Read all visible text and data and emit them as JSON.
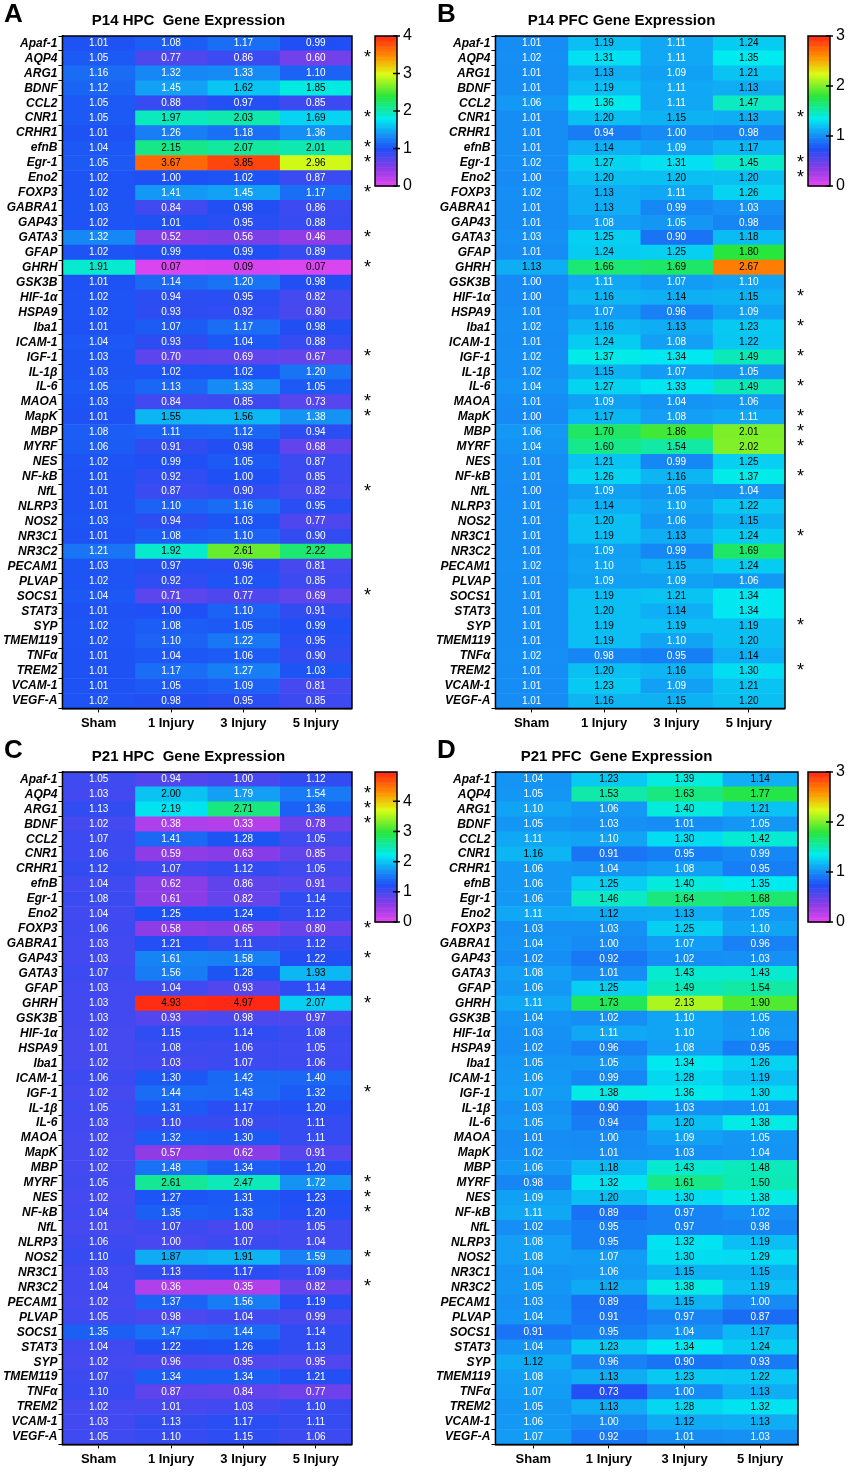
{
  "chart_data": [
    {
      "type": "heatmap",
      "title": "P14 HPC  Gene Expression",
      "annotations": [
        "A"
      ],
      "cell_labels": [
        [
          "1.01",
          "1.08",
          "1.17",
          "0.99"
        ],
        [
          "1.05",
          "0.77",
          "0.86",
          "0.60"
        ],
        [
          "1.16",
          "1.32",
          "1.33",
          "1.10"
        ],
        [
          "1.12",
          "1.45",
          "1.62",
          "1.85"
        ],
        [
          "1.05",
          "0.88",
          "0.97",
          "0.85"
        ],
        [
          "1.05",
          "1.97",
          "2.03",
          "1.69"
        ],
        [
          "1.01",
          "1.26",
          "1.18",
          "1.36"
        ],
        [
          "1.04",
          "2.15",
          "2.07",
          "2.01"
        ],
        [
          "1.05",
          "3.67",
          "3.85",
          "2.96"
        ],
        [
          "1.02",
          "1.00",
          "1.02",
          "0.87"
        ],
        [
          "1.02",
          "1.41",
          "1.45",
          "1.17"
        ],
        [
          "1.03",
          "0.84",
          "0.98",
          "0.86"
        ],
        [
          "1.02",
          "1.01",
          "0.95",
          "0.88"
        ],
        [
          "1.32",
          "0.52",
          "0.56",
          "0.46"
        ],
        [
          "1.02",
          "0.99",
          "0.99",
          "0.89"
        ],
        [
          "1.91",
          "0.07",
          "0.09",
          "0.07"
        ],
        [
          "1.01",
          "1.14",
          "1.20",
          "0.98"
        ],
        [
          "1.02",
          "0.94",
          "0.95",
          "0.82"
        ],
        [
          "1.02",
          "0.93",
          "0.92",
          "0.80"
        ],
        [
          "1.01",
          "1.07",
          "1.17",
          "0.98"
        ],
        [
          "1.04",
          "0.93",
          "1.04",
          "0.88"
        ],
        [
          "1.03",
          "0.70",
          "0.69",
          "0.67"
        ],
        [
          "1.03",
          "1.02",
          "1.02",
          "1.20"
        ],
        [
          "1.05",
          "1.13",
          "1.33",
          "1.05"
        ],
        [
          "1.03",
          "0.84",
          "0.85",
          "0.73"
        ],
        [
          "1.01",
          "1.55",
          "1.56",
          "1.38"
        ],
        [
          "1.08",
          "1.11",
          "1.12",
          "0.94"
        ],
        [
          "1.06",
          "0.91",
          "0.98",
          "0.68"
        ],
        [
          "1.02",
          "0.99",
          "1.05",
          "0.87"
        ],
        [
          "1.01",
          "0.92",
          "1.00",
          "0.85"
        ],
        [
          "1.01",
          "0.87",
          "0.90",
          "0.82"
        ],
        [
          "1.01",
          "1.10",
          "1.16",
          "0.95"
        ],
        [
          "1.03",
          "0.94",
          "1.03",
          "0.77"
        ],
        [
          "1.01",
          "1.08",
          "1.10",
          "0.90"
        ],
        [
          "1.21",
          "1.92",
          "2.61",
          "2.22"
        ],
        [
          "1.03",
          "0.97",
          "0.96",
          "0.81"
        ],
        [
          "1.02",
          "0.92",
          "1.02",
          "0.85"
        ],
        [
          "1.04",
          "0.71",
          "0.77",
          "0.69"
        ],
        [
          "1.01",
          "1.00",
          "1.10",
          "0.91"
        ],
        [
          "1.02",
          "1.08",
          "1.05",
          "0.99"
        ],
        [
          "1.02",
          "1.10",
          "1.22",
          "0.95"
        ],
        [
          "1.01",
          "1.04",
          "1.06",
          "0.90"
        ],
        [
          "1.01",
          "1.17",
          "1.27",
          "1.03"
        ],
        [
          "1.01",
          "1.05",
          "1.09",
          "0.81"
        ],
        [
          "1.02",
          "0.98",
          "0.95",
          "0.85"
        ]
      ],
      "data_labels": true,
      "clim": [
        0,
        4
      ],
      "cticks": [
        0,
        1,
        2,
        3,
        4
      ],
      "categories": [
        "Sham",
        "1 Injury",
        "3 Injury",
        "5 Injury"
      ],
      "y_categories": [
        "Apaf-1",
        "AQP4",
        "ARG1",
        "BDNF",
        "CCL2",
        "CNR1",
        "CRHR1",
        "efnB",
        "Egr-1",
        "Eno2",
        "FOXP3",
        "GABRA1",
        "GAP43",
        "GATA3",
        "GFAP",
        "GHRH",
        "GSK3B",
        "HIF-1α",
        "HSPA9",
        "Iba1",
        "ICAM-1",
        "IGF-1",
        "IL-1β",
        "IL-6",
        "MAOA",
        "MapK",
        "MBP",
        "MYRF",
        "NES",
        "NF-kB",
        "NfL",
        "NLRP3",
        "NOS2",
        "NR3C1",
        "NR3C2",
        "PECAM1",
        "PLVAP",
        "SOCS1",
        "STAT3",
        "SYP",
        "TMEM119",
        "TNFα",
        "TREM2",
        "VCAM-1",
        "VEGF-A"
      ],
      "y2_categories": [
        null,
        "*",
        null,
        null,
        null,
        "*",
        null,
        "*",
        "*",
        null,
        "*",
        null,
        null,
        "*",
        null,
        "*",
        null,
        null,
        null,
        null,
        null,
        "*",
        null,
        null,
        "*",
        "*",
        null,
        null,
        null,
        null,
        "*",
        null,
        null,
        null,
        null,
        null,
        null,
        "*",
        null,
        null,
        null,
        null,
        null,
        null,
        null
      ],
      "cells": [
        [
          1.01,
          1.08,
          1.17,
          0.99
        ],
        [
          1.05,
          0.77,
          0.86,
          0.6
        ],
        [
          1.16,
          1.32,
          1.33,
          1.1
        ],
        [
          1.12,
          1.45,
          1.62,
          1.85
        ],
        [
          1.05,
          0.88,
          0.97,
          0.85
        ],
        [
          1.05,
          1.97,
          2.03,
          1.69
        ],
        [
          1.01,
          1.26,
          1.18,
          1.36
        ],
        [
          1.04,
          2.15,
          2.07,
          2.01
        ],
        [
          1.05,
          3.67,
          3.85,
          2.96
        ],
        [
          1.02,
          1.0,
          1.02,
          0.87
        ],
        [
          1.02,
          1.41,
          1.45,
          1.17
        ],
        [
          1.03,
          0.84,
          0.98,
          0.86
        ],
        [
          1.02,
          1.01,
          0.95,
          0.88
        ],
        [
          1.32,
          0.52,
          0.56,
          0.46
        ],
        [
          1.02,
          0.99,
          0.99,
          0.89
        ],
        [
          1.91,
          0.07,
          0.09,
          0.07
        ],
        [
          1.01,
          1.14,
          1.2,
          0.98
        ],
        [
          1.02,
          0.94,
          0.95,
          0.82
        ],
        [
          1.02,
          0.93,
          0.92,
          0.8
        ],
        [
          1.01,
          1.07,
          1.17,
          0.98
        ],
        [
          1.04,
          0.93,
          1.04,
          0.88
        ],
        [
          1.03,
          0.7,
          0.69,
          0.67
        ],
        [
          1.03,
          1.02,
          1.02,
          1.2
        ],
        [
          1.05,
          1.13,
          1.33,
          1.05
        ],
        [
          1.03,
          0.84,
          0.85,
          0.73
        ],
        [
          1.01,
          1.55,
          1.56,
          1.38
        ],
        [
          1.08,
          1.11,
          1.12,
          0.94
        ],
        [
          1.06,
          0.91,
          0.98,
          0.68
        ],
        [
          1.02,
          0.99,
          1.05,
          0.87
        ],
        [
          1.01,
          0.92,
          1.0,
          0.85
        ],
        [
          1.01,
          0.87,
          0.9,
          0.82
        ],
        [
          1.01,
          1.1,
          1.16,
          0.95
        ],
        [
          1.03,
          0.94,
          1.03,
          0.77
        ],
        [
          1.01,
          1.08,
          1.1,
          0.9
        ],
        [
          1.21,
          1.92,
          2.61,
          2.22
        ],
        [
          1.03,
          0.97,
          0.96,
          0.81
        ],
        [
          1.02,
          0.92,
          1.02,
          0.85
        ],
        [
          1.04,
          0.71,
          0.77,
          0.69
        ],
        [
          1.01,
          1.0,
          1.1,
          0.91
        ],
        [
          1.02,
          1.08,
          1.05,
          0.99
        ],
        [
          1.02,
          1.1,
          1.22,
          0.95
        ],
        [
          1.01,
          1.04,
          1.06,
          0.9
        ],
        [
          1.01,
          1.17,
          1.27,
          1.03
        ],
        [
          1.01,
          1.05,
          1.09,
          0.81
        ],
        [
          1.02,
          0.98,
          0.95,
          0.85
        ]
      ]
    },
    {
      "type": "heatmap",
      "title": "P14 PFC Gene Expression",
      "annotations": [
        "B"
      ],
      "cell_labels": [
        [
          "1.01",
          "1.19",
          "1.11",
          "1.24"
        ],
        [
          "1.02",
          "1.31",
          "1.11",
          "1.35"
        ],
        [
          "1.01",
          "1.13",
          "1.09",
          "1.21"
        ],
        [
          "1.01",
          "1.19",
          "1.11",
          "1.13"
        ],
        [
          "1.06",
          "1.36",
          "1.11",
          "1.47"
        ],
        [
          "1.01",
          "1.20",
          "1.15",
          "1.13"
        ],
        [
          "1.01",
          "0.94",
          "1.00",
          "0.98"
        ],
        [
          "1.01",
          "1.14",
          "1.09",
          "1.17"
        ],
        [
          "1.02",
          "1.27",
          "1.31",
          "1.45"
        ],
        [
          "1.00",
          "1.20",
          "1.20",
          "1.20"
        ],
        [
          "1.02",
          "1.13",
          "1.11",
          "1.26"
        ],
        [
          "1.01",
          "1.13",
          "0.99",
          "1.03"
        ],
        [
          "1.01",
          "1.08",
          "1.05",
          "0.98"
        ],
        [
          "1.03",
          "1.25",
          "0.90",
          "1.18"
        ],
        [
          "1.01",
          "1.24",
          "1.25",
          "1.80"
        ],
        [
          "1.13",
          "1.66",
          "1.69",
          "2.67"
        ],
        [
          "1.00",
          "1.11",
          "1.07",
          "1.10"
        ],
        [
          "1.00",
          "1.16",
          "1.14",
          "1.15"
        ],
        [
          "1.01",
          "1.07",
          "0.96",
          "1.09"
        ],
        [
          "1.02",
          "1.16",
          "1.13",
          "1.23"
        ],
        [
          "1.01",
          "1.24",
          "1.08",
          "1.22"
        ],
        [
          "1.02",
          "1.37",
          "1.34",
          "1.49"
        ],
        [
          "1.02",
          "1.15",
          "1.07",
          "1.05"
        ],
        [
          "1.04",
          "1.27",
          "1.33",
          "1.49"
        ],
        [
          "1.01",
          "1.09",
          "1.04",
          "1.06"
        ],
        [
          "1.00",
          "1.17",
          "1.08",
          "1.11"
        ],
        [
          "1.06",
          "1.70",
          "1.86",
          "2.01"
        ],
        [
          "1.04",
          "1.60",
          "1.54",
          "2.02"
        ],
        [
          "1.01",
          "1.21",
          "0.99",
          "1.25"
        ],
        [
          "1.01",
          "1.26",
          "1.16",
          "1.37"
        ],
        [
          "1.00",
          "1.09",
          "1.05",
          "1.04"
        ],
        [
          "1.01",
          "1.14",
          "1.10",
          "1.22"
        ],
        [
          "1.01",
          "1.20",
          "1.06",
          "1.15"
        ],
        [
          "1.01",
          "1.19",
          "1.13",
          "1.24"
        ],
        [
          "1.01",
          "1.09",
          "0.99",
          "1.69"
        ],
        [
          "1.02",
          "1.10",
          "1.15",
          "1.24"
        ],
        [
          "1.01",
          "1.09",
          "1.09",
          "1.06"
        ],
        [
          "1.01",
          "1.19",
          "1.21",
          "1.34"
        ],
        [
          "1.01",
          "1.20",
          "1.14",
          "1.34"
        ],
        [
          "1.01",
          "1.19",
          "1.19",
          "1.19"
        ],
        [
          "1.01",
          "1.19",
          "1.10",
          "1.20"
        ],
        [
          "1.02",
          "0.98",
          "0.95",
          "1.14"
        ],
        [
          "1.01",
          "1.20",
          "1.16",
          "1.30"
        ],
        [
          "1.01",
          "1.23",
          "1.09",
          "1.21"
        ],
        [
          "1.01",
          "1.16",
          "1.15",
          "1.20"
        ]
      ],
      "data_labels": true,
      "clim": [
        0,
        3
      ],
      "cticks": [
        0,
        1,
        2,
        3
      ],
      "categories": [
        "Sham",
        "1 Injury",
        "3 Injury",
        "5 Injury"
      ],
      "y_categories": [
        "Apaf-1",
        "AQP4",
        "ARG1",
        "BDNF",
        "CCL2",
        "CNR1",
        "CRHR1",
        "efnB",
        "Egr-1",
        "Eno2",
        "FOXP3",
        "GABRA1",
        "GAP43",
        "GATA3",
        "GFAP",
        "GHRH",
        "GSK3B",
        "HIF-1α",
        "HSPA9",
        "Iba1",
        "ICAM-1",
        "IGF-1",
        "IL-1β",
        "IL-6",
        "MAOA",
        "MapK",
        "MBP",
        "MYRF",
        "NES",
        "NF-kB",
        "NfL",
        "NLRP3",
        "NOS2",
        "NR3C1",
        "NR3C2",
        "PECAM1",
        "PLVAP",
        "SOCS1",
        "STAT3",
        "SYP",
        "TMEM119",
        "TNFα",
        "TREM2",
        "VCAM-1",
        "VEGF-A"
      ],
      "y2_categories": [
        null,
        null,
        null,
        null,
        null,
        "*",
        null,
        null,
        "*",
        "*",
        null,
        null,
        null,
        null,
        null,
        null,
        null,
        "*",
        null,
        "*",
        null,
        "*",
        null,
        "*",
        null,
        "*",
        "*",
        "*",
        null,
        "*",
        null,
        null,
        null,
        "*",
        null,
        null,
        null,
        null,
        null,
        "*",
        null,
        null,
        "*",
        null,
        null
      ],
      "cells": [
        [
          1.01,
          1.19,
          1.11,
          1.24
        ],
        [
          1.02,
          1.31,
          1.11,
          1.35
        ],
        [
          1.01,
          1.13,
          1.09,
          1.21
        ],
        [
          1.01,
          1.19,
          1.11,
          1.13
        ],
        [
          1.06,
          1.36,
          1.11,
          1.47
        ],
        [
          1.01,
          1.2,
          1.15,
          1.13
        ],
        [
          1.01,
          0.94,
          1.0,
          0.98
        ],
        [
          1.01,
          1.14,
          1.09,
          1.17
        ],
        [
          1.02,
          1.27,
          1.31,
          1.45
        ],
        [
          1.0,
          1.2,
          1.2,
          1.2
        ],
        [
          1.02,
          1.13,
          1.11,
          1.26
        ],
        [
          1.01,
          1.13,
          0.99,
          1.03
        ],
        [
          1.01,
          1.08,
          1.05,
          0.98
        ],
        [
          1.03,
          1.25,
          0.9,
          1.18
        ],
        [
          1.01,
          1.24,
          1.25,
          1.8
        ],
        [
          1.13,
          1.66,
          1.69,
          2.67
        ],
        [
          1.0,
          1.11,
          1.07,
          1.1
        ],
        [
          1.0,
          1.16,
          1.14,
          1.15
        ],
        [
          1.01,
          1.07,
          0.96,
          1.09
        ],
        [
          1.02,
          1.16,
          1.13,
          1.23
        ],
        [
          1.01,
          1.24,
          1.08,
          1.22
        ],
        [
          1.02,
          1.37,
          1.34,
          1.49
        ],
        [
          1.02,
          1.15,
          1.07,
          1.05
        ],
        [
          1.04,
          1.27,
          1.33,
          1.49
        ],
        [
          1.01,
          1.09,
          1.04,
          1.06
        ],
        [
          1.0,
          1.17,
          1.08,
          1.11
        ],
        [
          1.06,
          1.7,
          1.86,
          2.01
        ],
        [
          1.04,
          1.6,
          1.54,
          2.02
        ],
        [
          1.01,
          1.21,
          0.99,
          1.25
        ],
        [
          1.01,
          1.26,
          1.16,
          1.37
        ],
        [
          1.0,
          1.09,
          1.05,
          1.04
        ],
        [
          1.01,
          1.14,
          1.1,
          1.22
        ],
        [
          1.01,
          1.2,
          1.06,
          1.15
        ],
        [
          1.01,
          1.19,
          1.13,
          1.24
        ],
        [
          1.01,
          1.09,
          0.99,
          1.69
        ],
        [
          1.02,
          1.1,
          1.15,
          1.24
        ],
        [
          1.01,
          1.09,
          1.09,
          1.06
        ],
        [
          1.01,
          1.19,
          1.21,
          1.34
        ],
        [
          1.01,
          1.2,
          1.14,
          1.34
        ],
        [
          1.01,
          1.19,
          1.19,
          1.19
        ],
        [
          1.01,
          1.19,
          1.1,
          1.2
        ],
        [
          1.02,
          0.98,
          0.95,
          1.14
        ],
        [
          1.01,
          1.2,
          1.16,
          1.3
        ],
        [
          1.01,
          1.23,
          1.09,
          1.21
        ],
        [
          1.01,
          1.16,
          1.15,
          1.2
        ]
      ]
    },
    {
      "type": "heatmap",
      "title": "P21 HPC  Gene Expression",
      "annotations": [
        "C"
      ],
      "cell_labels": [
        [
          "1.05",
          "0.94",
          "1.00",
          "1.12"
        ],
        [
          "1.03",
          "2.00",
          "1.79",
          "1.54"
        ],
        [
          "1.13",
          "2.19",
          "2.71",
          "1.36"
        ],
        [
          "1.02",
          "0.38",
          "0.33",
          "0.78"
        ],
        [
          "1.07",
          "1.41",
          "1.28",
          "1.05"
        ],
        [
          "1.06",
          "0.59",
          "0.63",
          "0.85"
        ],
        [
          "1.12",
          "1.07",
          "1.12",
          "1.05"
        ],
        [
          "1.04",
          "0.62",
          "0.86",
          "0.91"
        ],
        [
          "1.08",
          "0.61",
          "0.82",
          "1.14"
        ],
        [
          "1.04",
          "1.25",
          "1.24",
          "1.12"
        ],
        [
          "1.06",
          "0.58",
          "0.65",
          "0.80"
        ],
        [
          "1.03",
          "1.21",
          "1.11",
          "1.12"
        ],
        [
          "1.03",
          "1.61",
          "1.58",
          "1.22"
        ],
        [
          "1.07",
          "1.56",
          "1.28",
          "1.93"
        ],
        [
          "1.03",
          "1.04",
          "0.93",
          "1.14"
        ],
        [
          "1.03",
          "4.93",
          "4.97",
          "2.07"
        ],
        [
          "1.03",
          "0.93",
          "0.98",
          "0.97"
        ],
        [
          "1.02",
          "1.15",
          "1.14",
          "1.08"
        ],
        [
          "1.01",
          "1.08",
          "1.06",
          "1.05"
        ],
        [
          "1.02",
          "1.03",
          "1.07",
          "1.06"
        ],
        [
          "1.06",
          "1.30",
          "1.42",
          "1.40"
        ],
        [
          "1.02",
          "1.44",
          "1.43",
          "1.32"
        ],
        [
          "1.05",
          "1.31",
          "1.17",
          "1.20"
        ],
        [
          "1.03",
          "1.10",
          "1.09",
          "1.11"
        ],
        [
          "1.02",
          "1.32",
          "1.30",
          "1.11"
        ],
        [
          "1.02",
          "0.57",
          "0.62",
          "0.91"
        ],
        [
          "1.02",
          "1.48",
          "1.34",
          "1.20"
        ],
        [
          "1.05",
          "2.61",
          "2.47",
          "1.72"
        ],
        [
          "1.02",
          "1.27",
          "1.31",
          "1.23"
        ],
        [
          "1.04",
          "1.35",
          "1.33",
          "1.20"
        ],
        [
          "1.01",
          "1.07",
          "1.00",
          "1.05"
        ],
        [
          "1.06",
          "1.00",
          "1.07",
          "1.04"
        ],
        [
          "1.10",
          "1.87",
          "1.91",
          "1.59"
        ],
        [
          "1.03",
          "1.13",
          "1.17",
          "1.09"
        ],
        [
          "1.04",
          "0.36",
          "0.35",
          "0.82"
        ],
        [
          "1.02",
          "1.37",
          "1.56",
          "1.19"
        ],
        [
          "1.05",
          "0.98",
          "1.04",
          "0.99"
        ],
        [
          "1.35",
          "1.47",
          "1.44",
          "1.14"
        ],
        [
          "1.04",
          "1.22",
          "1.26",
          "1.13"
        ],
        [
          "1.02",
          "0.96",
          "0.95",
          "0.95"
        ],
        [
          "1.07",
          "1.34",
          "1.34",
          "1.21"
        ],
        [
          "1.10",
          "0.87",
          "0.84",
          "0.77"
        ],
        [
          "1.02",
          "1.01",
          "1.03",
          "1.10"
        ],
        [
          "1.03",
          "1.13",
          "1.17",
          "1.11"
        ],
        [
          "1.05",
          "1.10",
          "1.15",
          "1.06"
        ]
      ],
      "data_labels": true,
      "clim": [
        0,
        4.97
      ],
      "cticks": [
        0,
        1,
        2,
        3,
        4
      ],
      "categories": [
        "Sham",
        "1 Injury",
        "3 Injury",
        "5 Injury"
      ],
      "y_categories": [
        "Apaf-1",
        "AQP4",
        "ARG1",
        "BDNF",
        "CCL2",
        "CNR1",
        "CRHR1",
        "efnB",
        "Egr-1",
        "Eno2",
        "FOXP3",
        "GABRA1",
        "GAP43",
        "GATA3",
        "GFAP",
        "GHRH",
        "GSK3B",
        "HIF-1α",
        "HSPA9",
        "Iba1",
        "ICAM-1",
        "IGF-1",
        "IL-1β",
        "IL-6",
        "MAOA",
        "MapK",
        "MBP",
        "MYRF",
        "NES",
        "NF-kB",
        "NfL",
        "NLRP3",
        "NOS2",
        "NR3C1",
        "NR3C2",
        "PECAM1",
        "PLVAP",
        "SOCS1",
        "STAT3",
        "SYP",
        "TMEM119",
        "TNFα",
        "TREM2",
        "VCAM-1",
        "VEGF-A"
      ],
      "y2_categories": [
        null,
        "*",
        "*",
        "*",
        null,
        null,
        null,
        null,
        null,
        null,
        "*",
        null,
        "*",
        null,
        null,
        "*",
        null,
        null,
        null,
        null,
        null,
        "*",
        null,
        null,
        null,
        null,
        null,
        "*",
        "*",
        "*",
        null,
        null,
        "*",
        null,
        "*",
        null,
        null,
        null,
        null,
        null,
        null,
        null,
        null,
        null,
        null
      ],
      "cells": [
        [
          1.05,
          0.94,
          1.0,
          1.12
        ],
        [
          1.03,
          2.0,
          1.79,
          1.54
        ],
        [
          1.13,
          2.19,
          2.71,
          1.36
        ],
        [
          1.02,
          0.38,
          0.33,
          0.78
        ],
        [
          1.07,
          1.41,
          1.28,
          1.05
        ],
        [
          1.06,
          0.59,
          0.63,
          0.85
        ],
        [
          1.12,
          1.07,
          1.12,
          1.05
        ],
        [
          1.04,
          0.62,
          0.86,
          0.91
        ],
        [
          1.08,
          0.61,
          0.82,
          1.14
        ],
        [
          1.04,
          1.25,
          1.24,
          1.12
        ],
        [
          1.06,
          0.58,
          0.65,
          0.8
        ],
        [
          1.03,
          1.21,
          1.11,
          1.12
        ],
        [
          1.03,
          1.61,
          1.58,
          1.22
        ],
        [
          1.07,
          1.56,
          1.28,
          1.93
        ],
        [
          1.03,
          1.04,
          0.93,
          1.14
        ],
        [
          1.03,
          4.93,
          4.97,
          2.07
        ],
        [
          1.03,
          0.93,
          0.98,
          0.97
        ],
        [
          1.02,
          1.15,
          1.14,
          1.08
        ],
        [
          1.01,
          1.08,
          1.06,
          1.05
        ],
        [
          1.02,
          1.03,
          1.07,
          1.06
        ],
        [
          1.06,
          1.3,
          1.42,
          1.4
        ],
        [
          1.02,
          1.44,
          1.43,
          1.32
        ],
        [
          1.05,
          1.31,
          1.17,
          1.2
        ],
        [
          1.03,
          1.1,
          1.09,
          1.11
        ],
        [
          1.02,
          1.32,
          1.3,
          1.11
        ],
        [
          1.02,
          0.57,
          0.62,
          0.91
        ],
        [
          1.02,
          1.48,
          1.34,
          1.2
        ],
        [
          1.05,
          2.61,
          2.47,
          1.72
        ],
        [
          1.02,
          1.27,
          1.31,
          1.23
        ],
        [
          1.04,
          1.35,
          1.33,
          1.2
        ],
        [
          1.01,
          1.07,
          1.0,
          1.05
        ],
        [
          1.06,
          1.0,
          1.07,
          1.04
        ],
        [
          1.1,
          1.87,
          1.91,
          1.59
        ],
        [
          1.03,
          1.13,
          1.17,
          1.09
        ],
        [
          1.04,
          0.36,
          0.35,
          0.82
        ],
        [
          1.02,
          1.37,
          1.56,
          1.19
        ],
        [
          1.05,
          0.98,
          1.04,
          0.99
        ],
        [
          1.35,
          1.47,
          1.44,
          1.14
        ],
        [
          1.04,
          1.22,
          1.26,
          1.13
        ],
        [
          1.02,
          0.96,
          0.95,
          0.95
        ],
        [
          1.07,
          1.34,
          1.34,
          1.21
        ],
        [
          1.1,
          0.87,
          0.84,
          0.77
        ],
        [
          1.02,
          1.01,
          1.03,
          1.1
        ],
        [
          1.03,
          1.13,
          1.17,
          1.11
        ],
        [
          1.05,
          1.1,
          1.15,
          1.06
        ]
      ]
    },
    {
      "type": "heatmap",
      "title": "P21 PFC  Gene Expression",
      "annotations": [
        "D"
      ],
      "cell_labels": [
        [
          "1.04",
          "1.23",
          "1.39",
          "1.14"
        ],
        [
          "1.05",
          "1.53",
          "1.63",
          "1.77"
        ],
        [
          "1.10",
          "1.06",
          "1.40",
          "1.21"
        ],
        [
          "1.05",
          "1.03",
          "1.01",
          "1.05"
        ],
        [
          "1.11",
          "1.10",
          "1.30",
          "1.42"
        ],
        [
          "1.16",
          "0.91",
          "0.95",
          "0.99"
        ],
        [
          "1.06",
          "1.04",
          "1.08",
          "0.95"
        ],
        [
          "1.06",
          "1.25",
          "1.40",
          "1.35"
        ],
        [
          "1.06",
          "1.46",
          "1.64",
          "1.68"
        ],
        [
          "1.11",
          "1.12",
          "1.13",
          "1.05"
        ],
        [
          "1.03",
          "1.03",
          "1.25",
          "1.10"
        ],
        [
          "1.04",
          "1.00",
          "1.07",
          "0.96"
        ],
        [
          "1.02",
          "0.92",
          "1.02",
          "1.03"
        ],
        [
          "1.08",
          "1.01",
          "1.43",
          "1.43"
        ],
        [
          "1.06",
          "1.25",
          "1.49",
          "1.54"
        ],
        [
          "1.11",
          "1.73",
          "2.13",
          "1.90"
        ],
        [
          "1.04",
          "1.02",
          "1.10",
          "1.05"
        ],
        [
          "1.03",
          "1.11",
          "1.10",
          "1.06"
        ],
        [
          "1.02",
          "0.96",
          "1.08",
          "0.95"
        ],
        [
          "1.05",
          "1.05",
          "1.34",
          "1.26"
        ],
        [
          "1.06",
          "0.99",
          "1.28",
          "1.19"
        ],
        [
          "1.07",
          "1.38",
          "1.36",
          "1.30"
        ],
        [
          "1.03",
          "0.90",
          "1.03",
          "1.01"
        ],
        [
          "1.05",
          "0.94",
          "1.20",
          "1.38"
        ],
        [
          "1.01",
          "1.00",
          "1.09",
          "1.05"
        ],
        [
          "1.02",
          "1.01",
          "1.03",
          "1.04"
        ],
        [
          "1.06",
          "1.18",
          "1.43",
          "1.48"
        ],
        [
          "0.98",
          "1.32",
          "1.61",
          "1.50"
        ],
        [
          "1.09",
          "1.20",
          "1.30",
          "1.38"
        ],
        [
          "1.11",
          "0.89",
          "0.97",
          "1.02"
        ],
        [
          "1.02",
          "0.95",
          "0.97",
          "0.98"
        ],
        [
          "1.08",
          "0.95",
          "1.32",
          "1.19"
        ],
        [
          "1.08",
          "1.07",
          "1.30",
          "1.29"
        ],
        [
          "1.04",
          "1.06",
          "1.15",
          "1.15"
        ],
        [
          "1.05",
          "1.12",
          "1.38",
          "1.19"
        ],
        [
          "1.03",
          "0.89",
          "1.15",
          "1.00"
        ],
        [
          "1.04",
          "0.91",
          "0.97",
          "0.87"
        ],
        [
          "0.91",
          "0.95",
          "1.04",
          "1.17"
        ],
        [
          "1.04",
          "1.23",
          "1.34",
          "1.24"
        ],
        [
          "1.12",
          "0.96",
          "0.90",
          "0.93"
        ],
        [
          "1.08",
          "1.13",
          "1.23",
          "1.22"
        ],
        [
          "1.07",
          "0.73",
          "1.00",
          "1.13"
        ],
        [
          "1.05",
          "1.13",
          "1.28",
          "1.32"
        ],
        [
          "1.06",
          "1.00",
          "1.12",
          "1.13"
        ],
        [
          "1.07",
          "0.92",
          "1.01",
          "1.03"
        ]
      ],
      "data_labels": true,
      "clim": [
        0,
        3
      ],
      "cticks": [
        0,
        1,
        2,
        3
      ],
      "categories": [
        "Sham",
        "1 Injury",
        "3 Injury",
        "5 Injury"
      ],
      "y_categories": [
        "Apaf-1",
        "AQP4",
        "ARG1",
        "BDNF",
        "CCL2",
        "CNR1",
        "CRHR1",
        "efnB",
        "Egr-1",
        "Eno2",
        "FOXP3",
        "GABRA1",
        "GAP43",
        "GATA3",
        "GFAP",
        "GHRH",
        "GSK3B",
        "HIF-1α",
        "HSPA9",
        "Iba1",
        "ICAM-1",
        "IGF-1",
        "IL-1β",
        "IL-6",
        "MAOA",
        "MapK",
        "MBP",
        "MYRF",
        "NES",
        "NF-kB",
        "NfL",
        "NLRP3",
        "NOS2",
        "NR3C1",
        "NR3C2",
        "PECAM1",
        "PLVAP",
        "SOCS1",
        "STAT3",
        "SYP",
        "TMEM119",
        "TNFα",
        "TREM2",
        "VCAM-1",
        "VEGF-A"
      ],
      "cells": [
        [
          1.04,
          1.23,
          1.39,
          1.14
        ],
        [
          1.05,
          1.53,
          1.63,
          1.77
        ],
        [
          1.1,
          1.06,
          1.4,
          1.21
        ],
        [
          1.05,
          1.03,
          1.01,
          1.05
        ],
        [
          1.11,
          1.1,
          1.3,
          1.42
        ],
        [
          1.16,
          0.91,
          0.95,
          0.99
        ],
        [
          1.06,
          1.04,
          1.08,
          0.95
        ],
        [
          1.06,
          1.25,
          1.4,
          1.35
        ],
        [
          1.06,
          1.46,
          1.64,
          1.68
        ],
        [
          1.11,
          1.12,
          1.13,
          1.05
        ],
        [
          1.03,
          1.03,
          1.25,
          1.1
        ],
        [
          1.04,
          1.0,
          1.07,
          0.96
        ],
        [
          1.02,
          0.92,
          1.02,
          1.03
        ],
        [
          1.08,
          1.01,
          1.43,
          1.43
        ],
        [
          1.06,
          1.25,
          1.49,
          1.54
        ],
        [
          1.11,
          1.73,
          2.13,
          1.9
        ],
        [
          1.04,
          1.02,
          1.1,
          1.05
        ],
        [
          1.03,
          1.11,
          1.1,
          1.06
        ],
        [
          1.02,
          0.96,
          1.08,
          0.95
        ],
        [
          1.05,
          1.05,
          1.34,
          1.26
        ],
        [
          1.06,
          0.99,
          1.28,
          1.19
        ],
        [
          1.07,
          1.38,
          1.36,
          1.3
        ],
        [
          1.03,
          0.9,
          1.03,
          1.01
        ],
        [
          1.05,
          0.94,
          1.2,
          1.38
        ],
        [
          1.01,
          1.0,
          1.09,
          1.05
        ],
        [
          1.02,
          1.01,
          1.03,
          1.04
        ],
        [
          1.06,
          1.18,
          1.43,
          1.48
        ],
        [
          0.98,
          1.32,
          1.61,
          1.5
        ],
        [
          1.09,
          1.2,
          1.3,
          1.38
        ],
        [
          1.11,
          0.89,
          0.97,
          1.02
        ],
        [
          1.02,
          0.95,
          0.97,
          0.98
        ],
        [
          1.08,
          0.95,
          1.32,
          1.19
        ],
        [
          1.08,
          1.07,
          1.3,
          1.29
        ],
        [
          1.04,
          1.06,
          1.15,
          1.15
        ],
        [
          1.05,
          1.12,
          1.38,
          1.19
        ],
        [
          1.03,
          0.89,
          1.15,
          1.0
        ],
        [
          1.04,
          0.91,
          0.97,
          0.87
        ],
        [
          0.91,
          0.95,
          1.04,
          1.17
        ],
        [
          1.04,
          1.23,
          1.34,
          1.24
        ],
        [
          1.12,
          0.96,
          0.9,
          0.93
        ],
        [
          1.08,
          1.13,
          1.23,
          1.22
        ],
        [
          1.07,
          0.73,
          1.0,
          1.13
        ],
        [
          1.05,
          1.13,
          1.28,
          1.32
        ],
        [
          1.06,
          1.0,
          1.12,
          1.13
        ],
        [
          1.07,
          0.92,
          1.01,
          1.03
        ]
      ]
    }
  ]
}
